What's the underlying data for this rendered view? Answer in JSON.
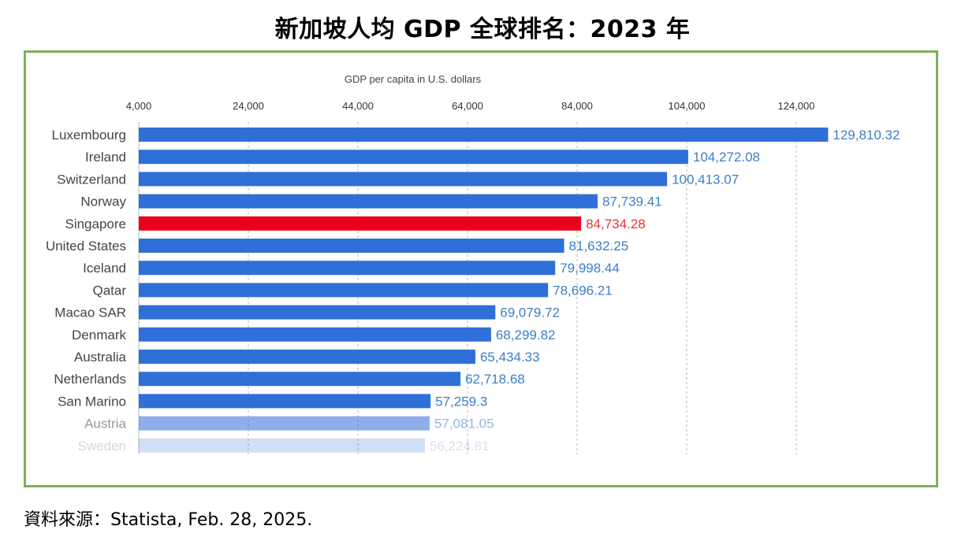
{
  "title": "新加坡人均 GDP 全球排名：2023 年",
  "source": "資料來源：Statista, Feb. 28, 2025.",
  "colors": {
    "bar": "#2f6fd8",
    "highlight_bar": "#e8001c",
    "value_label": "#3a7fc9",
    "highlight_label": "#e8352e",
    "frame": "#7daf5c",
    "category_label": "#444444",
    "tick_label": "#333333",
    "grid": "#b8b8b8"
  },
  "chart_data": {
    "type": "bar",
    "orientation": "horizontal",
    "axis_title": "GDP per capita in U.S. dollars",
    "x_ticks": [
      "4,000",
      "24,000",
      "44,000",
      "64,000",
      "84,000",
      "104,000",
      "124,000"
    ],
    "x_tick_values": [
      4000,
      24000,
      44000,
      64000,
      84000,
      104000,
      124000
    ],
    "xlim": [
      4000,
      144000
    ],
    "grid": "vertical dashed",
    "highlight_category": "Singapore",
    "categories": [
      "Luxembourg",
      "Ireland",
      "Switzerland",
      "Norway",
      "Singapore",
      "United States",
      "Iceland",
      "Qatar",
      "Macao SAR",
      "Denmark",
      "Australia",
      "Netherlands",
      "San Marino",
      "Austria",
      "Sweden"
    ],
    "values": [
      129810.32,
      104272.08,
      100413.07,
      87739.41,
      84734.28,
      81632.25,
      79998.44,
      78696.21,
      69079.72,
      68299.82,
      65434.33,
      62718.68,
      57259.3,
      57081.05,
      56224.81
    ],
    "value_labels": [
      "129,810.32",
      "104,272.08",
      "100,413.07",
      "87,739.41",
      "84,734.28",
      "81,632.25",
      "79,998.44",
      "78,696.21",
      "69,079.72",
      "68,299.82",
      "65,434.33",
      "62,718.68",
      "57,259.3",
      "57,081.05",
      "56,224.81"
    ],
    "faded_rows": {
      "Austria": 0.55,
      "Sweden": 0.22
    }
  }
}
